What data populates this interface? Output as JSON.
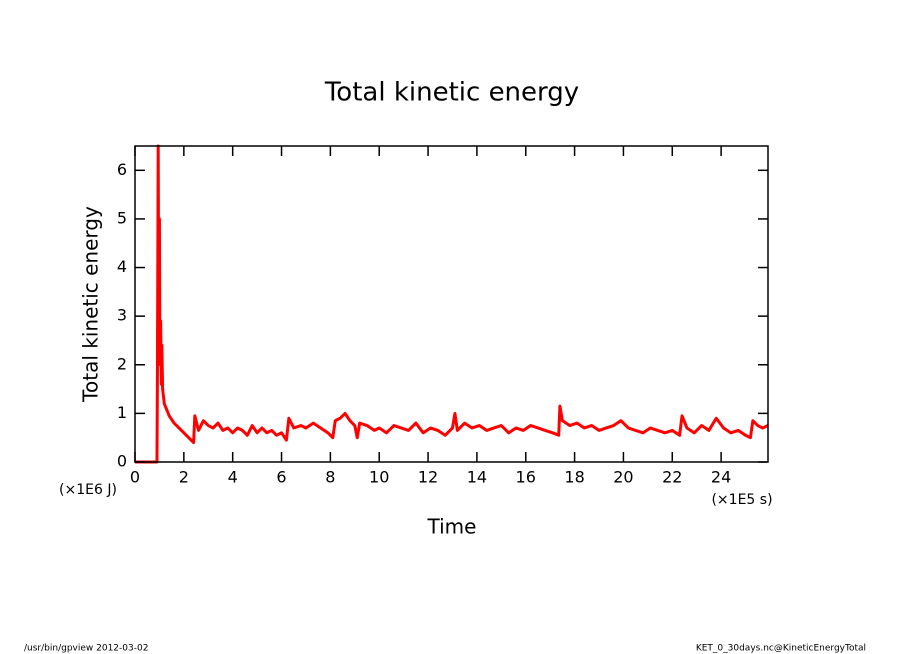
{
  "chart_data": {
    "type": "line",
    "title": "Total kinetic energy",
    "x_label": "Time",
    "y_label": "Total kinetic energy",
    "x_unit": "(×1E5 s)",
    "y_unit": "(×1E6 J)",
    "footer_left": "/usr/bin/gpview  2012-03-02",
    "footer_right": "KET_0_30days.nc@KineticEnergyTotal",
    "color": "#ff0000",
    "xlim": [
      0,
      25.92
    ],
    "ylim": [
      0,
      6.5
    ],
    "xticks": [
      0,
      2,
      4,
      6,
      8,
      10,
      12,
      14,
      16,
      18,
      20,
      22,
      24
    ],
    "yticks": [
      0,
      1,
      2,
      3,
      4,
      5,
      6
    ],
    "x": [
      0,
      0.9,
      0.92,
      0.95,
      0.97,
      1.0,
      1.02,
      1.05,
      1.08,
      1.1,
      1.13,
      1.2,
      1.4,
      1.6,
      1.8,
      2.0,
      2.2,
      2.4,
      2.45,
      2.6,
      2.8,
      3.0,
      3.2,
      3.4,
      3.6,
      3.8,
      4.0,
      4.2,
      4.4,
      4.6,
      4.8,
      5.0,
      5.2,
      5.4,
      5.6,
      5.8,
      6.0,
      6.2,
      6.3,
      6.5,
      6.8,
      7.0,
      7.3,
      7.6,
      7.9,
      8.1,
      8.2,
      8.4,
      8.6,
      8.8,
      9.0,
      9.1,
      9.2,
      9.5,
      9.8,
      10.0,
      10.3,
      10.6,
      10.9,
      11.2,
      11.5,
      11.8,
      12.1,
      12.4,
      12.7,
      13.0,
      13.1,
      13.2,
      13.5,
      13.8,
      14.1,
      14.4,
      14.7,
      15.0,
      15.3,
      15.6,
      15.9,
      16.2,
      16.5,
      16.8,
      17.1,
      17.35,
      17.4,
      17.5,
      17.8,
      18.1,
      18.4,
      18.7,
      19.0,
      19.3,
      19.6,
      19.9,
      20.2,
      20.5,
      20.8,
      21.1,
      21.4,
      21.7,
      22.0,
      22.3,
      22.4,
      22.6,
      22.9,
      23.2,
      23.5,
      23.8,
      24.1,
      24.4,
      24.7,
      25.0,
      25.2,
      25.3,
      25.5,
      25.7,
      25.92
    ],
    "values": [
      0,
      0,
      2.0,
      6.5,
      3.0,
      5.0,
      2.0,
      2.9,
      1.6,
      2.4,
      1.5,
      1.2,
      0.95,
      0.8,
      0.7,
      0.6,
      0.5,
      0.4,
      0.95,
      0.65,
      0.85,
      0.75,
      0.7,
      0.8,
      0.65,
      0.7,
      0.6,
      0.7,
      0.65,
      0.55,
      0.75,
      0.6,
      0.7,
      0.6,
      0.65,
      0.55,
      0.6,
      0.45,
      0.9,
      0.7,
      0.75,
      0.7,
      0.8,
      0.7,
      0.6,
      0.5,
      0.85,
      0.9,
      1.0,
      0.85,
      0.75,
      0.5,
      0.8,
      0.75,
      0.65,
      0.7,
      0.6,
      0.75,
      0.7,
      0.65,
      0.8,
      0.6,
      0.7,
      0.65,
      0.55,
      0.7,
      1.0,
      0.65,
      0.8,
      0.7,
      0.75,
      0.65,
      0.7,
      0.75,
      0.6,
      0.7,
      0.65,
      0.75,
      0.7,
      0.65,
      0.6,
      0.55,
      1.15,
      0.85,
      0.75,
      0.8,
      0.7,
      0.75,
      0.65,
      0.7,
      0.75,
      0.85,
      0.7,
      0.65,
      0.6,
      0.7,
      0.65,
      0.6,
      0.65,
      0.55,
      0.95,
      0.7,
      0.6,
      0.75,
      0.65,
      0.9,
      0.7,
      0.6,
      0.65,
      0.55,
      0.5,
      0.85,
      0.75,
      0.7,
      0.75
    ]
  }
}
